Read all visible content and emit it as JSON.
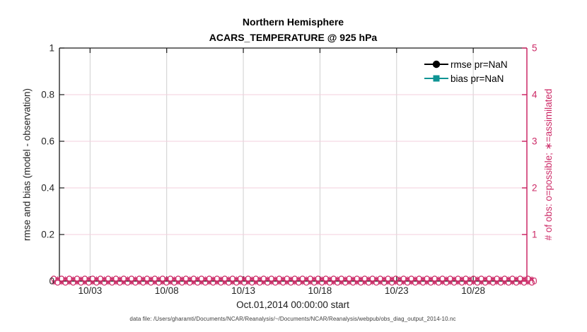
{
  "figure": {
    "title_line1": "Northern Hemisphere",
    "title_line2": "ACARS_TEMPERATURE @ 925 hPa",
    "xlabel": "Oct.01,2014 00:00:00 start",
    "ylabel_left": "rmse and bias (model - observation)",
    "ylabel_right": "# of obs: o=possible; ∗=assimilated",
    "footer": "data file: /Users/gharamti/Documents/NCAR/Reanalysis/~/Documents/NCAR/Reanalysis/webpub/obs_diag_output_2014-10.nc"
  },
  "legend": {
    "items": [
      {
        "label": "rmse pr=NaN",
        "color": "#000000",
        "marker": "filled-circle"
      },
      {
        "label": "bias pr=NaN",
        "color": "#0f9494",
        "marker": "filled-square"
      }
    ]
  },
  "colors": {
    "accent_pink": "#cc2966",
    "grid_pink": "#f3cfdd",
    "grid_gray": "#cfcfcf",
    "axis_dark": "#1a1a1a",
    "teal": "#0f9494"
  },
  "chart_data": {
    "type": "line",
    "title": "Northern Hemisphere",
    "subtitle": "ACARS_TEMPERATURE @ 925 hPa",
    "xlabel": "Oct.01,2014 00:00:00 start",
    "x_axis": {
      "tick_labels": [
        "10/03",
        "10/08",
        "10/13",
        "10/18",
        "10/23",
        "10/28"
      ],
      "tick_days": [
        2,
        7,
        12,
        17,
        22,
        27
      ],
      "range_days": [
        0,
        30.5
      ]
    },
    "y_axis_left": {
      "label": "rmse and bias (model - observation)",
      "tick_labels": [
        "0",
        "0.2",
        "0.4",
        "0.6",
        "0.8",
        "1"
      ],
      "tick_values": [
        0,
        0.2,
        0.4,
        0.6,
        0.8,
        1
      ],
      "lim": [
        0,
        1
      ]
    },
    "y_axis_right": {
      "label": "# of obs: o=possible; ∗=assimilated",
      "tick_labels": [
        "0",
        "1",
        "2",
        "3",
        "4",
        "5"
      ],
      "tick_values": [
        0,
        1,
        2,
        3,
        4,
        5
      ],
      "lim": [
        0,
        5
      ],
      "color": "#cc2966"
    },
    "grid": {
      "vertical": true,
      "horizontal": true,
      "legend_position": "top-right-inside",
      "legend_box": false
    },
    "series": [
      {
        "name": "rmse pr=NaN",
        "axis": "left",
        "marker": "filled-circle",
        "color": "#000000",
        "values": "NaN",
        "plotted": false
      },
      {
        "name": "bias pr=NaN",
        "axis": "left",
        "marker": "filled-square",
        "color": "#0f9494",
        "values": "NaN",
        "plotted": false
      },
      {
        "name": "# of possible obs (o)",
        "axis": "right",
        "marker": "o",
        "color": "#cc2966",
        "constant_value": 0,
        "n_points": 124
      },
      {
        "name": "# of assimilated obs (∗)",
        "axis": "right",
        "marker": "asterisk",
        "color": "#cc2966",
        "constant_value": 0,
        "n_points": 124
      }
    ]
  }
}
